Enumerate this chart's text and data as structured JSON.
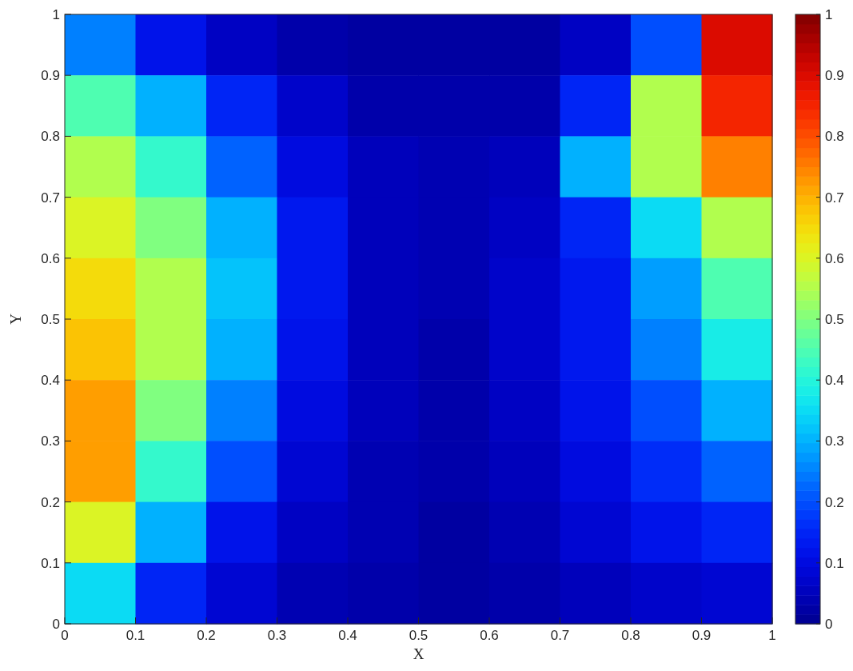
{
  "chart_data": {
    "type": "heatmap",
    "xlabel": "X",
    "ylabel": "Y",
    "xlim": [
      0,
      1
    ],
    "ylim": [
      0,
      1
    ],
    "xticks": [
      0,
      0.1,
      0.2,
      0.3,
      0.4,
      0.5,
      0.6,
      0.7,
      0.8,
      0.9,
      1
    ],
    "yticks": [
      0,
      0.1,
      0.2,
      0.3,
      0.4,
      0.5,
      0.6,
      0.7,
      0.8,
      0.9,
      1
    ],
    "clim": [
      0,
      1
    ],
    "cticks": [
      0,
      0.1,
      0.2,
      0.3,
      0.4,
      0.5,
      0.6,
      0.7,
      0.8,
      0.9,
      1
    ],
    "cells": [
      [
        0.25,
        0.12,
        0.06,
        0.03,
        0.02,
        0.02,
        0.02,
        0.06,
        0.2,
        0.9
      ],
      [
        0.45,
        0.3,
        0.15,
        0.07,
        0.03,
        0.03,
        0.03,
        0.15,
        0.55,
        0.85
      ],
      [
        0.55,
        0.42,
        0.22,
        0.1,
        0.05,
        0.04,
        0.05,
        0.3,
        0.55,
        0.75
      ],
      [
        0.6,
        0.5,
        0.3,
        0.13,
        0.05,
        0.04,
        0.06,
        0.15,
        0.35,
        0.55
      ],
      [
        0.65,
        0.55,
        0.32,
        0.13,
        0.05,
        0.04,
        0.07,
        0.13,
        0.28,
        0.45
      ],
      [
        0.68,
        0.55,
        0.3,
        0.12,
        0.05,
        0.03,
        0.07,
        0.13,
        0.25,
        0.38
      ],
      [
        0.72,
        0.5,
        0.25,
        0.1,
        0.05,
        0.03,
        0.06,
        0.12,
        0.2,
        0.3
      ],
      [
        0.72,
        0.42,
        0.2,
        0.08,
        0.04,
        0.03,
        0.05,
        0.1,
        0.16,
        0.22
      ],
      [
        0.6,
        0.3,
        0.12,
        0.06,
        0.04,
        0.02,
        0.04,
        0.08,
        0.12,
        0.15
      ],
      [
        0.35,
        0.15,
        0.08,
        0.04,
        0.03,
        0.02,
        0.03,
        0.05,
        0.07,
        0.08
      ]
    ]
  }
}
